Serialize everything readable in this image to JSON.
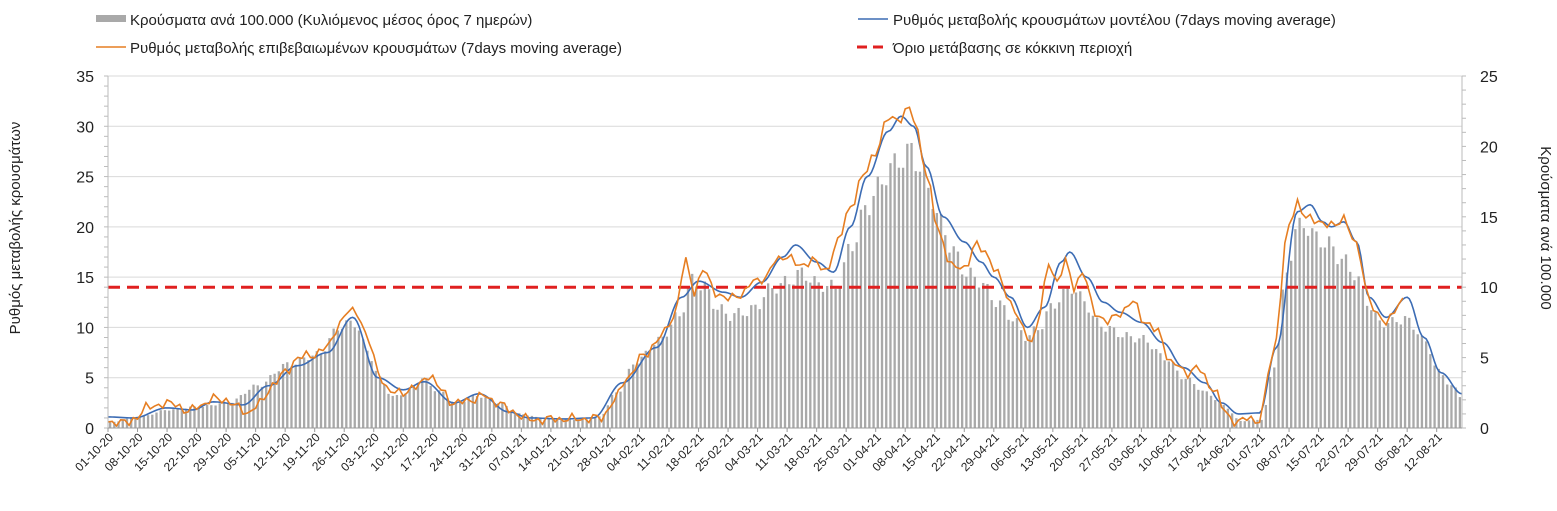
{
  "chart_data": {
    "type": "bar+line",
    "legend": [
      {
        "key": "bars",
        "label": "Κρούσματα ανά 100.000 (Κυλιόμενος μέσος όρος 7 ημερών)",
        "color": "#a9a9a9",
        "style": "bar"
      },
      {
        "key": "model",
        "label": "Ρυθμός μεταβολής κρουσμάτων μοντέλου (7days moving average)",
        "color": "#3c6cb4",
        "style": "line"
      },
      {
        "key": "conf",
        "label": "Ρυθμός μεταβολής επιβεβαιωμένων κρουσμάτων (7days moving average)",
        "color": "#e67e22",
        "style": "line"
      },
      {
        "key": "thr",
        "label": "Όριο μετάβασης σε κόκκινη περιοχή",
        "color": "#e02020",
        "style": "dash"
      }
    ],
    "ylabel_left": "Ρυθμός μεταβολής κρουσμάτων",
    "ylabel_right": "Κρούσματα ανά 100.000",
    "ylim_left": [
      0,
      35
    ],
    "ylim_right": [
      0,
      25
    ],
    "yticks_left": [
      0,
      5,
      10,
      15,
      20,
      25,
      30,
      35
    ],
    "yticks_right": [
      0,
      5,
      10,
      15,
      20,
      25
    ],
    "threshold": 14,
    "x_labels": [
      "01-10-20",
      "08-10-20",
      "15-10-20",
      "22-10-20",
      "29-10-20",
      "05-11-20",
      "12-11-20",
      "19-11-20",
      "26-11-20",
      "03-12-20",
      "10-12-20",
      "17-12-20",
      "24-12-20",
      "31-12-20",
      "07-01-21",
      "14-01-21",
      "21-01-21",
      "28-01-21",
      "04-02-21",
      "11-02-21",
      "18-02-21",
      "25-02-21",
      "04-03-21",
      "11-03-21",
      "18-03-21",
      "25-03-21",
      "01-04-21",
      "08-04-21",
      "15-04-21",
      "22-04-21",
      "29-04-21",
      "06-05-21",
      "13-05-21",
      "20-05-21",
      "27-05-21",
      "03-06-21",
      "10-06-21",
      "17-06-21",
      "24-06-21",
      "01-07-21",
      "08-07-21",
      "15-07-21",
      "22-07-21",
      "29-07-21",
      "05-08-21",
      "12-08-21"
    ],
    "label_days": [
      0,
      7,
      14,
      21,
      28,
      35,
      42,
      49,
      56,
      63,
      70,
      77,
      84,
      91,
      98,
      105,
      112,
      119,
      126,
      133,
      140,
      147,
      154,
      161,
      168,
      175,
      182,
      189,
      196,
      203,
      210,
      217,
      224,
      231,
      238,
      245,
      252,
      259,
      266,
      273,
      280,
      287,
      294,
      301,
      308,
      315
    ],
    "total_days": 321,
    "model_keypoints": [
      [
        0,
        1.1
      ],
      [
        6,
        1.0
      ],
      [
        14,
        2.0
      ],
      [
        20,
        1.8
      ],
      [
        25,
        2.6
      ],
      [
        32,
        2.3
      ],
      [
        38,
        4.2
      ],
      [
        45,
        6.2
      ],
      [
        52,
        7.5
      ],
      [
        58,
        11.0
      ],
      [
        64,
        5.0
      ],
      [
        70,
        3.8
      ],
      [
        75,
        4.6
      ],
      [
        82,
        2.5
      ],
      [
        88,
        3.4
      ],
      [
        95,
        1.6
      ],
      [
        100,
        1.0
      ],
      [
        108,
        0.9
      ],
      [
        115,
        1.0
      ],
      [
        122,
        4.5
      ],
      [
        130,
        8.0
      ],
      [
        136,
        13.0
      ],
      [
        140,
        14.6
      ],
      [
        146,
        13.5
      ],
      [
        150,
        13.0
      ],
      [
        155,
        14.5
      ],
      [
        160,
        17.0
      ],
      [
        163,
        18.2
      ],
      [
        168,
        16.5
      ],
      [
        172,
        15.5
      ],
      [
        176,
        20.0
      ],
      [
        180,
        25.0
      ],
      [
        185,
        29.5
      ],
      [
        188,
        31.0
      ],
      [
        191,
        30.0
      ],
      [
        194,
        26.0
      ],
      [
        198,
        21.0
      ],
      [
        203,
        18.5
      ],
      [
        207,
        16.5
      ],
      [
        210,
        15.0
      ],
      [
        214,
        13.0
      ],
      [
        218,
        10.0
      ],
      [
        222,
        12.0
      ],
      [
        226,
        16.5
      ],
      [
        228,
        17.5
      ],
      [
        232,
        15.0
      ],
      [
        236,
        12.5
      ],
      [
        240,
        11.5
      ],
      [
        245,
        10.5
      ],
      [
        250,
        8.5
      ],
      [
        255,
        6.0
      ],
      [
        260,
        4.5
      ],
      [
        264,
        2.5
      ],
      [
        268,
        1.4
      ],
      [
        273,
        1.5
      ],
      [
        277,
        8.0
      ],
      [
        282,
        21.5
      ],
      [
        285,
        22.2
      ],
      [
        288,
        20.5
      ],
      [
        290,
        20.0
      ],
      [
        293,
        20.5
      ],
      [
        296,
        18.5
      ],
      [
        299,
        13.0
      ],
      [
        303,
        11.0
      ],
      [
        308,
        13.0
      ],
      [
        312,
        9.0
      ],
      [
        316,
        5.5
      ],
      [
        321,
        3.4
      ]
    ],
    "conf_keypoints": [
      [
        0,
        0.6
      ],
      [
        5,
        0.5
      ],
      [
        7,
        1.2
      ],
      [
        9,
        2.0
      ],
      [
        13,
        2.4
      ],
      [
        16,
        2.4
      ],
      [
        19,
        1.6
      ],
      [
        22,
        2.3
      ],
      [
        25,
        2.9
      ],
      [
        28,
        2.8
      ],
      [
        31,
        2.0
      ],
      [
        33,
        1.5
      ],
      [
        36,
        2.4
      ],
      [
        39,
        4.3
      ],
      [
        42,
        5.5
      ],
      [
        45,
        7.0
      ],
      [
        48,
        7.2
      ],
      [
        52,
        8.0
      ],
      [
        55,
        10.5
      ],
      [
        57,
        11.6
      ],
      [
        59,
        11.5
      ],
      [
        62,
        8.5
      ],
      [
        64,
        5.5
      ],
      [
        67,
        3.5
      ],
      [
        70,
        3.6
      ],
      [
        73,
        4.0
      ],
      [
        76,
        5.3
      ],
      [
        79,
        3.8
      ],
      [
        82,
        2.4
      ],
      [
        86,
        2.8
      ],
      [
        89,
        3.2
      ],
      [
        92,
        2.6
      ],
      [
        96,
        1.6
      ],
      [
        100,
        0.8
      ],
      [
        107,
        0.9
      ],
      [
        112,
        0.9
      ],
      [
        117,
        1.0
      ],
      [
        120,
        2.7
      ],
      [
        123,
        5.0
      ],
      [
        127,
        7.2
      ],
      [
        131,
        9.0
      ],
      [
        134,
        11.0
      ],
      [
        137,
        16.5
      ],
      [
        139,
        13.5
      ],
      [
        141,
        15.8
      ],
      [
        144,
        13.5
      ],
      [
        147,
        12.8
      ],
      [
        150,
        13.3
      ],
      [
        153,
        14.5
      ],
      [
        156,
        15.0
      ],
      [
        158,
        16.5
      ],
      [
        161,
        17.2
      ],
      [
        164,
        16.0
      ],
      [
        167,
        16.8
      ],
      [
        170,
        15.5
      ],
      [
        173,
        18.5
      ],
      [
        176,
        22.0
      ],
      [
        179,
        25.0
      ],
      [
        182,
        27.5
      ],
      [
        185,
        30.8
      ],
      [
        188,
        30.8
      ],
      [
        190,
        31.8
      ],
      [
        192,
        29.5
      ],
      [
        194,
        25.0
      ],
      [
        197,
        19.5
      ],
      [
        200,
        16.0
      ],
      [
        203,
        16.0
      ],
      [
        206,
        18.2
      ],
      [
        208,
        17.5
      ],
      [
        211,
        15.2
      ],
      [
        214,
        12.5
      ],
      [
        217,
        9.8
      ],
      [
        219,
        8.5
      ],
      [
        221,
        11.5
      ],
      [
        223,
        16.5
      ],
      [
        225,
        14.5
      ],
      [
        227,
        16.5
      ],
      [
        229,
        14.0
      ],
      [
        231,
        15.5
      ],
      [
        234,
        11.5
      ],
      [
        237,
        10.5
      ],
      [
        240,
        11.5
      ],
      [
        243,
        12.5
      ],
      [
        246,
        10.5
      ],
      [
        249,
        9.5
      ],
      [
        252,
        6.5
      ],
      [
        256,
        5.5
      ],
      [
        258,
        6.0
      ],
      [
        262,
        4.0
      ],
      [
        265,
        1.5
      ],
      [
        267,
        0.5
      ],
      [
        270,
        0.9
      ],
      [
        273,
        0.8
      ],
      [
        276,
        7.0
      ],
      [
        280,
        20.0
      ],
      [
        282,
        22.5
      ],
      [
        284,
        21.0
      ],
      [
        286,
        20.5
      ],
      [
        288,
        20.5
      ],
      [
        291,
        20.0
      ],
      [
        293,
        21.0
      ],
      [
        296,
        18.0
      ],
      [
        299,
        13.0
      ],
      [
        301,
        11.0
      ],
      [
        303,
        10.5
      ],
      [
        305,
        11.8
      ],
      [
        307,
        12.5
      ]
    ],
    "bars_keypoints": [
      [
        0,
        0.4
      ],
      [
        7,
        0.8
      ],
      [
        14,
        1.3
      ],
      [
        21,
        1.5
      ],
      [
        28,
        1.8
      ],
      [
        35,
        3.0
      ],
      [
        42,
        4.5
      ],
      [
        49,
        5.2
      ],
      [
        55,
        7.3
      ],
      [
        58,
        7.5
      ],
      [
        61,
        5.5
      ],
      [
        64,
        3.5
      ],
      [
        67,
        2.2
      ],
      [
        70,
        2.5
      ],
      [
        74,
        3.5
      ],
      [
        78,
        2.6
      ],
      [
        82,
        1.8
      ],
      [
        87,
        2.3
      ],
      [
        92,
        1.8
      ],
      [
        97,
        1.0
      ],
      [
        104,
        0.6
      ],
      [
        112,
        0.6
      ],
      [
        116,
        0.8
      ],
      [
        120,
        2.5
      ],
      [
        125,
        4.8
      ],
      [
        130,
        6.2
      ],
      [
        135,
        8.0
      ],
      [
        138,
        10.5
      ],
      [
        141,
        10.0
      ],
      [
        144,
        8.5
      ],
      [
        147,
        8.0
      ],
      [
        150,
        8.2
      ],
      [
        153,
        8.5
      ],
      [
        156,
        9.8
      ],
      [
        160,
        10.3
      ],
      [
        164,
        11.0
      ],
      [
        168,
        10.2
      ],
      [
        172,
        10.0
      ],
      [
        176,
        13.0
      ],
      [
        179,
        15.5
      ],
      [
        182,
        17.0
      ],
      [
        185,
        18.5
      ],
      [
        188,
        19.2
      ],
      [
        190,
        19.7
      ],
      [
        192,
        18.5
      ],
      [
        194,
        17.0
      ],
      [
        197,
        14.5
      ],
      [
        200,
        12.5
      ],
      [
        203,
        11.0
      ],
      [
        206,
        10.5
      ],
      [
        210,
        9.0
      ],
      [
        214,
        7.8
      ],
      [
        217,
        6.5
      ],
      [
        220,
        7.0
      ],
      [
        223,
        8.5
      ],
      [
        226,
        9.5
      ],
      [
        228,
        10.0
      ],
      [
        231,
        9.0
      ],
      [
        234,
        7.5
      ],
      [
        237,
        7.0
      ],
      [
        241,
        6.5
      ],
      [
        245,
        6.3
      ],
      [
        250,
        5.0
      ],
      [
        255,
        3.5
      ],
      [
        260,
        2.5
      ],
      [
        264,
        1.6
      ],
      [
        268,
        0.5
      ],
      [
        273,
        0.6
      ],
      [
        276,
        4.5
      ],
      [
        279,
        11.0
      ],
      [
        281,
        14.0
      ],
      [
        283,
        14.5
      ],
      [
        286,
        13.5
      ],
      [
        289,
        13.0
      ],
      [
        292,
        12.0
      ],
      [
        295,
        11.0
      ],
      [
        298,
        9.0
      ],
      [
        301,
        7.5
      ],
      [
        304,
        7.5
      ],
      [
        307,
        7.8
      ],
      [
        309,
        7.2
      ],
      [
        312,
        6.0
      ],
      [
        315,
        4.0
      ],
      [
        318,
        3.0
      ],
      [
        321,
        2.0
      ]
    ]
  }
}
